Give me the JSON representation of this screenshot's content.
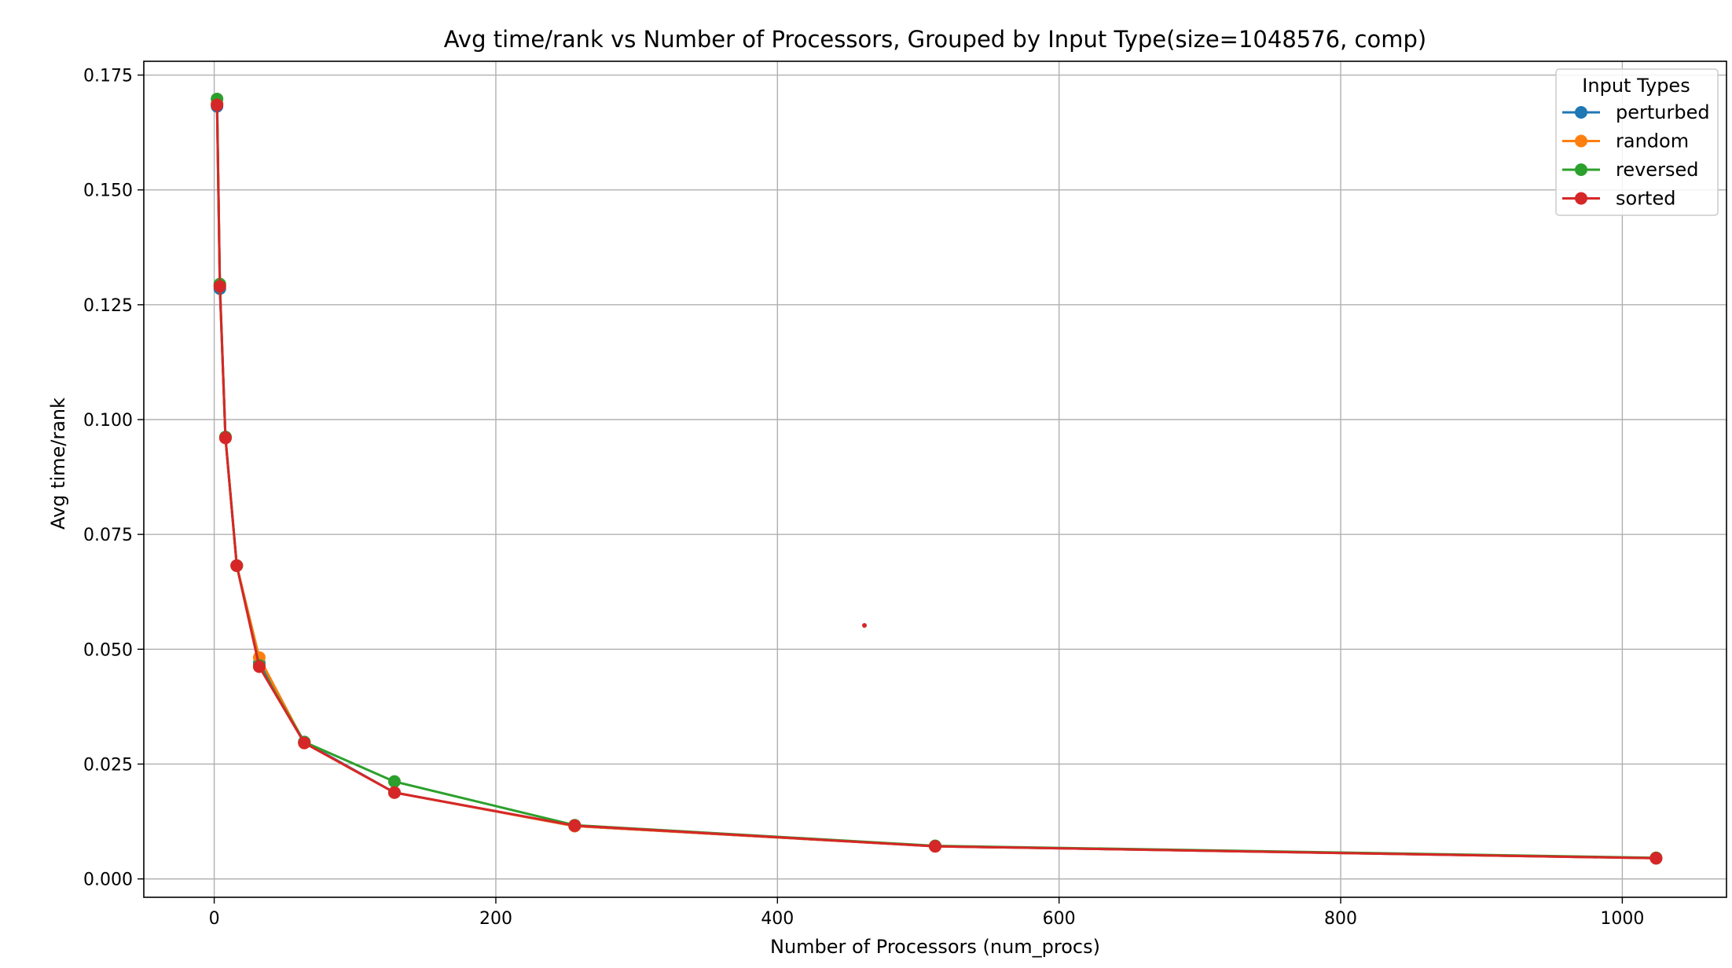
{
  "chart_data": {
    "type": "line",
    "title": "Avg time/rank vs Number of Processors, Grouped by Input Type(size=1048576, comp)",
    "xlabel": "Number of Processors (num_procs)",
    "ylabel": "Avg time/rank",
    "xlim": [
      -50,
      1074
    ],
    "ylim": [
      -0.004,
      0.178
    ],
    "xticks": [
      0,
      200,
      400,
      600,
      800,
      1000
    ],
    "xtick_labels": [
      "0",
      "200",
      "400",
      "600",
      "800",
      "1000"
    ],
    "yticks": [
      0.0,
      0.025,
      0.05,
      0.075,
      0.1,
      0.125,
      0.15,
      0.175
    ],
    "ytick_labels": [
      "0.000",
      "0.025",
      "0.050",
      "0.075",
      "0.100",
      "0.125",
      "0.150",
      "0.175"
    ],
    "grid": true,
    "legend_title": "Input Types",
    "legend_position": "top-right",
    "x": [
      2,
      4,
      8,
      16,
      32,
      64,
      128,
      256,
      512,
      1024
    ],
    "series": [
      {
        "name": "perturbed",
        "color": "#1f77b4",
        "values": [
          0.1682,
          0.1285,
          0.0962,
          0.0682,
          0.047,
          0.0298,
          0.0188,
          0.0115,
          0.0071,
          0.0045
        ]
      },
      {
        "name": "random",
        "color": "#ff7f0e",
        "values": [
          0.1688,
          0.1292,
          0.096,
          0.0682,
          0.0482,
          0.0296,
          0.0188,
          0.0115,
          0.0071,
          0.0045
        ]
      },
      {
        "name": "reversed",
        "color": "#2ca02c",
        "values": [
          0.1698,
          0.1295,
          0.0962,
          0.0682,
          0.0465,
          0.0298,
          0.0212,
          0.0117,
          0.0072,
          0.0046
        ]
      },
      {
        "name": "sorted",
        "color": "#d62728",
        "values": [
          0.1685,
          0.129,
          0.096,
          0.0682,
          0.0462,
          0.0296,
          0.0188,
          0.0116,
          0.0071,
          0.0045
        ]
      }
    ]
  }
}
